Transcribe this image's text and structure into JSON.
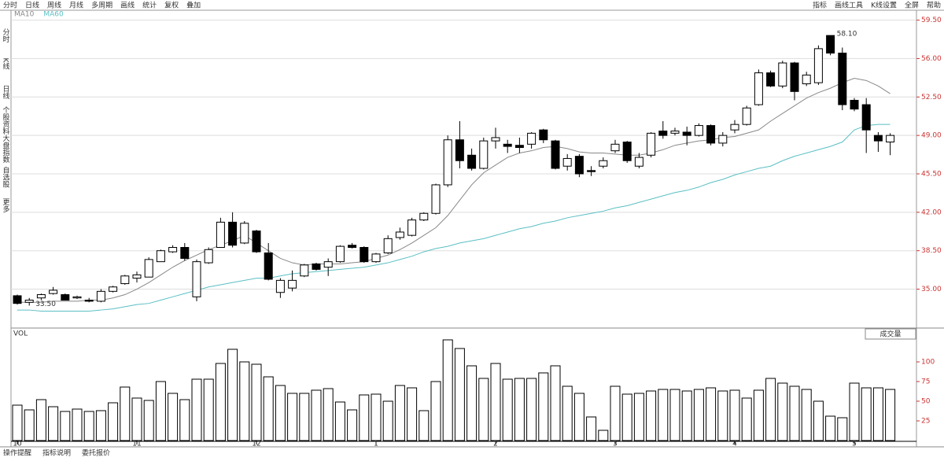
{
  "toolbar": {
    "left": [
      "分时",
      "日线",
      "周线",
      "月线",
      "多周期",
      "画线",
      "统计",
      "复权",
      "叠加"
    ],
    "right": [
      "指标",
      "画线工具",
      "K线设置",
      "全屏",
      "帮助"
    ]
  },
  "sidebar": [
    "分时",
    "K线",
    "日线",
    "个股资料",
    "大盘指数",
    "自选股",
    "更多"
  ],
  "tabs": [
    "操作提醒",
    "指标说明",
    "委托报价"
  ],
  "chart_data": {
    "type": "candlestick",
    "categories": [
      "10",
      null,
      null,
      null,
      null,
      null,
      null,
      null,
      null,
      null,
      "11",
      null,
      null,
      null,
      null,
      null,
      null,
      null,
      null,
      null,
      "12",
      null,
      null,
      null,
      null,
      null,
      null,
      null,
      null,
      null,
      "1",
      null,
      null,
      null,
      null,
      null,
      null,
      null,
      null,
      null,
      "2",
      null,
      null,
      null,
      null,
      null,
      null,
      null,
      null,
      null,
      "3",
      null,
      null,
      null,
      null,
      null,
      null,
      null,
      null,
      null,
      "4",
      null,
      null,
      null,
      null,
      null,
      null,
      null,
      null,
      null,
      "5",
      null,
      null,
      null
    ],
    "open": [
      34.4,
      33.8,
      34.2,
      34.6,
      34.5,
      34.2,
      34.0,
      33.9,
      34.8,
      35.5,
      36.0,
      36.1,
      37.5,
      38.4,
      38.8,
      34.3,
      37.4,
      38.8,
      41.1,
      39.2,
      40.3,
      38.3,
      34.7,
      35.1,
      36.2,
      37.3,
      37.0,
      37.5,
      39.0,
      38.8,
      37.5,
      38.3,
      39.7,
      39.9,
      41.3,
      41.9,
      44.5,
      48.6,
      47.2,
      46.0,
      48.5,
      48.2,
      48.1,
      48.2,
      49.5,
      48.5,
      46.2,
      47.1,
      45.8,
      46.2,
      47.6,
      48.4,
      46.2,
      47.2,
      49.4,
      49.2,
      49.3,
      49.0,
      49.9,
      48.3,
      49.5,
      50.0,
      51.8,
      54.7,
      53.5,
      55.6,
      53.7,
      53.8,
      58.1,
      56.5,
      52.2,
      51.8,
      49.0,
      48.4
    ],
    "high": [
      34.5,
      34.2,
      34.6,
      35.2,
      34.6,
      34.4,
      34.2,
      35.0,
      35.3,
      36.3,
      36.6,
      37.9,
      38.6,
      39.0,
      39.2,
      37.7,
      38.8,
      41.5,
      42.0,
      41.2,
      40.4,
      39.2,
      36.0,
      36.7,
      37.3,
      37.4,
      37.8,
      39.0,
      39.2,
      38.9,
      38.3,
      39.9,
      40.6,
      41.5,
      42.0,
      44.6,
      49.0,
      50.3,
      47.8,
      48.8,
      49.7,
      48.6,
      48.8,
      49.3,
      49.6,
      48.6,
      47.3,
      47.3,
      46.2,
      47.0,
      48.6,
      48.5,
      47.4,
      49.3,
      50.3,
      49.7,
      49.8,
      50.1,
      50.0,
      49.3,
      50.4,
      51.7,
      55.0,
      54.9,
      55.8,
      55.7,
      54.8,
      57.2,
      58.1,
      57.0,
      52.4,
      52.4,
      49.3,
      49.2
    ],
    "low": [
      33.6,
      33.5,
      34.0,
      34.5,
      34.0,
      34.1,
      33.8,
      33.8,
      34.7,
      35.4,
      35.6,
      36.1,
      37.5,
      38.3,
      37.6,
      33.9,
      37.3,
      38.8,
      38.8,
      39.1,
      38.3,
      35.8,
      34.2,
      34.8,
      36.1,
      36.7,
      36.2,
      37.4,
      38.7,
      37.4,
      37.4,
      38.2,
      39.5,
      39.8,
      41.2,
      41.8,
      44.3,
      46.0,
      45.8,
      45.9,
      47.8,
      47.4,
      47.4,
      47.8,
      48.3,
      45.9,
      45.8,
      45.2,
      45.3,
      46.0,
      47.4,
      46.5,
      46.0,
      47.0,
      48.7,
      49.0,
      48.1,
      48.9,
      48.1,
      48.0,
      49.2,
      49.9,
      51.7,
      53.4,
      53.3,
      52.2,
      53.5,
      53.6,
      56.3,
      51.3,
      51.2,
      47.4,
      47.5,
      47.2
    ],
    "close": [
      33.7,
      34.0,
      34.5,
      34.9,
      34.0,
      34.3,
      33.9,
      34.8,
      35.2,
      36.2,
      36.3,
      37.7,
      38.5,
      38.8,
      37.8,
      37.5,
      38.6,
      41.1,
      39.0,
      41.0,
      38.4,
      35.9,
      35.8,
      35.8,
      37.2,
      36.8,
      37.5,
      38.9,
      38.8,
      37.5,
      38.2,
      39.6,
      40.2,
      41.3,
      41.9,
      44.5,
      48.6,
      46.7,
      46.0,
      48.5,
      48.8,
      48.0,
      47.9,
      49.2,
      48.6,
      46.0,
      46.9,
      45.5,
      45.7,
      46.7,
      48.2,
      46.7,
      47.0,
      49.2,
      49.0,
      49.4,
      49.0,
      49.9,
      48.3,
      49.0,
      50.0,
      51.5,
      54.7,
      53.5,
      55.6,
      53.0,
      54.5,
      56.9,
      56.5,
      51.8,
      51.4,
      49.5,
      48.5,
      49.0
    ],
    "up_color": "#ffffff",
    "down_color": "#000000",
    "lines": [
      {
        "name": "MA10",
        "color": "#888888",
        "values": [
          33.8,
          33.8,
          33.8,
          33.9,
          33.9,
          33.9,
          34.0,
          34.0,
          34.2,
          34.5,
          35.0,
          35.6,
          36.3,
          37.0,
          37.6,
          38.1,
          38.6,
          39.0,
          39.4,
          39.9,
          39.2,
          38.5,
          37.8,
          37.4,
          37.2,
          37.3,
          37.3,
          37.3,
          37.4,
          37.5,
          37.8,
          38.1,
          38.6,
          39.2,
          39.9,
          40.6,
          41.7,
          43.1,
          44.5,
          45.6,
          46.3,
          47.0,
          47.4,
          47.6,
          47.9,
          48.0,
          47.8,
          47.5,
          47.4,
          47.4,
          47.3,
          47.2,
          47.2,
          47.4,
          47.7,
          48.1,
          48.3,
          48.5,
          48.6,
          48.8,
          48.9,
          49.2,
          49.5,
          50.3,
          51.0,
          51.7,
          52.4,
          52.9,
          53.3,
          53.8,
          54.2,
          54.0,
          53.5,
          52.8
        ]
      },
      {
        "name": "MA60",
        "color": "#5bbfc4",
        "values": [
          33.1,
          33.1,
          33.0,
          33.0,
          33.0,
          33.0,
          33.0,
          33.1,
          33.2,
          33.4,
          33.6,
          33.7,
          34.0,
          34.3,
          34.6,
          34.9,
          35.2,
          35.4,
          35.6,
          35.8,
          36.0,
          36.0,
          36.2,
          36.4,
          36.5,
          36.6,
          36.7,
          36.8,
          36.9,
          37.0,
          37.2,
          37.4,
          37.7,
          38.0,
          38.4,
          38.7,
          38.9,
          39.2,
          39.4,
          39.6,
          39.9,
          40.2,
          40.5,
          40.7,
          41.0,
          41.2,
          41.5,
          41.7,
          41.9,
          42.1,
          42.4,
          42.6,
          42.9,
          43.2,
          43.5,
          43.8,
          44.0,
          44.3,
          44.7,
          45.0,
          45.4,
          45.7,
          46.0,
          46.2,
          46.7,
          47.1,
          47.4,
          47.7,
          48.0,
          48.4,
          49.5,
          49.9,
          50.0,
          50.0
        ]
      }
    ],
    "annotations": [
      {
        "index": 68,
        "value": 58.1,
        "label": "58.10"
      },
      {
        "index": 1,
        "value": 33.5,
        "label": "33.50"
      }
    ],
    "ylim": [
      31.6,
      59.9
    ],
    "yticks": [
      {
        "value": 59.5,
        "label": "59.50"
      },
      {
        "value": 56,
        "label": "56.00"
      },
      {
        "value": 52.5,
        "label": "52.50"
      },
      {
        "value": 49,
        "label": "49.00"
      },
      {
        "value": 45.5,
        "label": "45.50"
      },
      {
        "value": 42,
        "label": "42.00"
      },
      {
        "value": 38.5,
        "label": "38.50"
      },
      {
        "value": 35,
        "label": "35.00"
      }
    ],
    "grid": true,
    "volume": {
      "label": "VOL",
      "button": "成交量",
      "color": "#000000",
      "values": [
        45,
        39,
        52,
        43,
        37,
        40,
        37,
        38,
        48,
        68,
        54,
        51,
        75,
        60,
        52,
        78,
        78,
        98,
        116,
        100,
        97,
        81,
        70,
        60,
        60,
        64,
        66,
        49,
        39,
        58,
        59,
        50,
        70,
        67,
        38,
        75,
        128,
        117,
        95,
        79,
        98,
        78,
        79,
        79,
        86,
        95,
        69,
        60,
        30,
        13,
        69,
        59,
        60,
        63,
        65,
        65,
        63,
        65,
        67,
        63,
        64,
        54,
        64,
        79,
        73,
        69,
        65,
        50,
        31,
        29,
        73,
        67,
        67,
        65
      ],
      "ylim": [
        0,
        135
      ],
      "yticks": [
        25,
        50,
        75,
        100
      ]
    }
  }
}
